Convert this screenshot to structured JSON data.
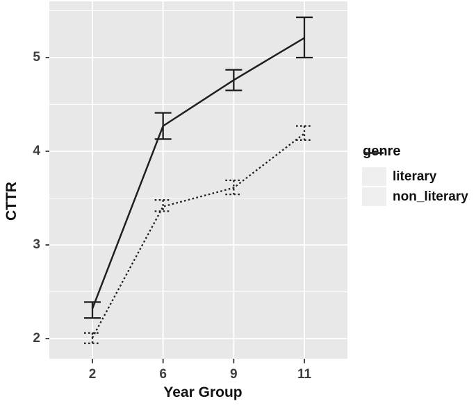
{
  "chart_data": {
    "type": "line",
    "title": "",
    "xlabel": "Year Group",
    "ylabel": "CTTR",
    "categories": [
      "2",
      "6",
      "9",
      "11"
    ],
    "y_ticks": [
      2,
      3,
      4,
      5
    ],
    "y_tick_labels": [
      "2",
      "3",
      "4",
      "5"
    ],
    "y_minor_ticks": [
      2.5,
      3.5,
      4.5,
      5.5
    ],
    "ylim": [
      1.8,
      5.6
    ],
    "grid": {
      "horizontal": "major+minor",
      "vertical": "major-only"
    },
    "legend_title": "genre",
    "legend_position": "right-middle",
    "series": [
      {
        "name": "literary",
        "line_style": "solid",
        "values": [
          2.32,
          4.27,
          4.76,
          5.21
        ],
        "error_low": [
          2.22,
          4.13,
          4.65,
          5.0
        ],
        "error_high": [
          2.39,
          4.41,
          4.87,
          5.43
        ]
      },
      {
        "name": "non_literary",
        "line_style": "dotted",
        "values": [
          2.01,
          3.41,
          3.61,
          4.19
        ],
        "error_low": [
          1.95,
          3.36,
          3.54,
          4.12
        ],
        "error_high": [
          2.06,
          3.48,
          3.69,
          4.27
        ]
      }
    ],
    "colors": {
      "panel_bg": "#e8e8e8",
      "gridline": "#ffffff",
      "line": "#1f1f1f",
      "tick_mark": "#333333",
      "tick_label": "#3d3d3d",
      "axis_title": "#111111",
      "legend_key_bg": "#efefef",
      "legend_text": "#111111"
    }
  }
}
